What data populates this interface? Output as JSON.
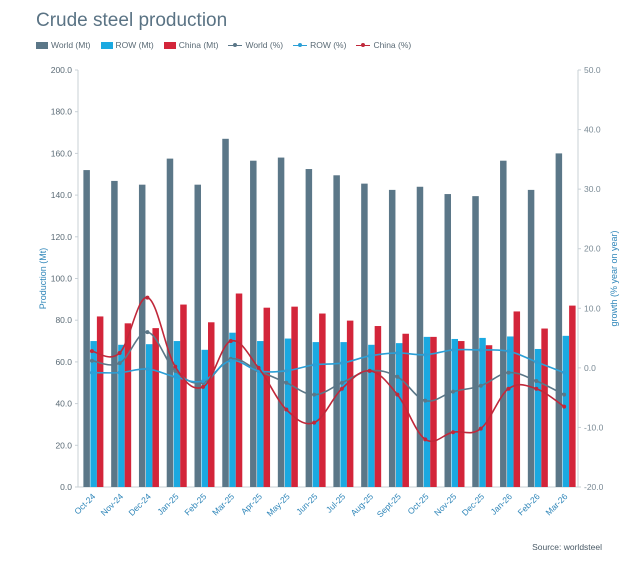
{
  "title": "Crude steel production",
  "source": "Source: worldsteel",
  "colors": {
    "world_bar": "#5b7788",
    "row_bar": "#1ba9e1",
    "china_bar": "#d3253a",
    "world_line": "#5b7788",
    "row_line": "#2b9fd6",
    "china_line": "#c0283a"
  },
  "chart_data": {
    "type": "bar",
    "title": "Crude steel production",
    "categories": [
      "Oct-24",
      "Nov-24",
      "Dec-24",
      "Jan-25",
      "Feb-25",
      "Mar-25",
      "Apr-25",
      "May-25",
      "Jun-25",
      "Jul-25",
      "Aug-25",
      "Sept-25",
      "Oct-25",
      "Nov-25",
      "Dec-25",
      "Jan-26",
      "Feb-26",
      "Mar-26"
    ],
    "ylabel": "Production (Mt)",
    "y2label": "growth (% year on year)",
    "ylim": [
      0,
      200
    ],
    "y2lim": [
      -20,
      50
    ],
    "y_ticks": [
      "0.0",
      "20.0",
      "40.0",
      "60.0",
      "80.0",
      "100.0",
      "120.0",
      "140.0",
      "160.0",
      "180.0",
      "200.0"
    ],
    "y2_ticks": [
      "-20.0",
      "-10.0",
      "0.0",
      "10.0",
      "20.0",
      "30.0",
      "40.0",
      "50.0"
    ],
    "legend_position": "top-left",
    "grid": false,
    "bar_series": [
      {
        "name": "World (Mt)",
        "values": [
          152,
          146.8,
          145,
          157.5,
          145,
          167,
          156.5,
          158,
          152.5,
          149.5,
          145.5,
          142.5,
          144,
          140.5,
          139.5,
          156.5,
          142.5,
          160
        ]
      },
      {
        "name": "ROW (Mt)",
        "values": [
          70,
          68.2,
          68.5,
          70,
          65.8,
          74,
          70,
          71.2,
          69.5,
          69.5,
          68.2,
          69,
          72,
          71,
          71.5,
          72.2,
          66.2,
          72.5
        ]
      },
      {
        "name": "China (Mt)",
        "values": [
          81.8,
          78.5,
          76.2,
          87.5,
          79,
          92.8,
          86,
          86.5,
          83.2,
          79.8,
          77.2,
          73.5,
          72,
          70,
          68,
          84.2,
          76,
          87
        ]
      }
    ],
    "line_series": [
      {
        "name": "World (%)",
        "values": [
          1.2,
          0.8,
          6.0,
          -0.5,
          -2.5,
          1.5,
          -0.5,
          -2.5,
          -4.5,
          -2.5,
          -0.5,
          -1.5,
          -5.5,
          -4.0,
          -3.0,
          -0.8,
          -2.2,
          -4.5
        ]
      },
      {
        "name": "ROW (%)",
        "values": [
          -0.8,
          -0.8,
          -0.2,
          -1.5,
          -2.2,
          1.2,
          -0.5,
          -0.5,
          0.5,
          0.8,
          2.0,
          2.5,
          2.2,
          3.0,
          3.0,
          2.8,
          1.0,
          -0.8
        ]
      },
      {
        "name": "China (%)",
        "values": [
          2.8,
          2.5,
          11.8,
          0.2,
          -3.2,
          4.5,
          0.0,
          -7.0,
          -9.2,
          -3.5,
          -0.5,
          -4.5,
          -12.0,
          -10.8,
          -10.2,
          -3.5,
          -3.5,
          -6.5
        ]
      }
    ]
  }
}
